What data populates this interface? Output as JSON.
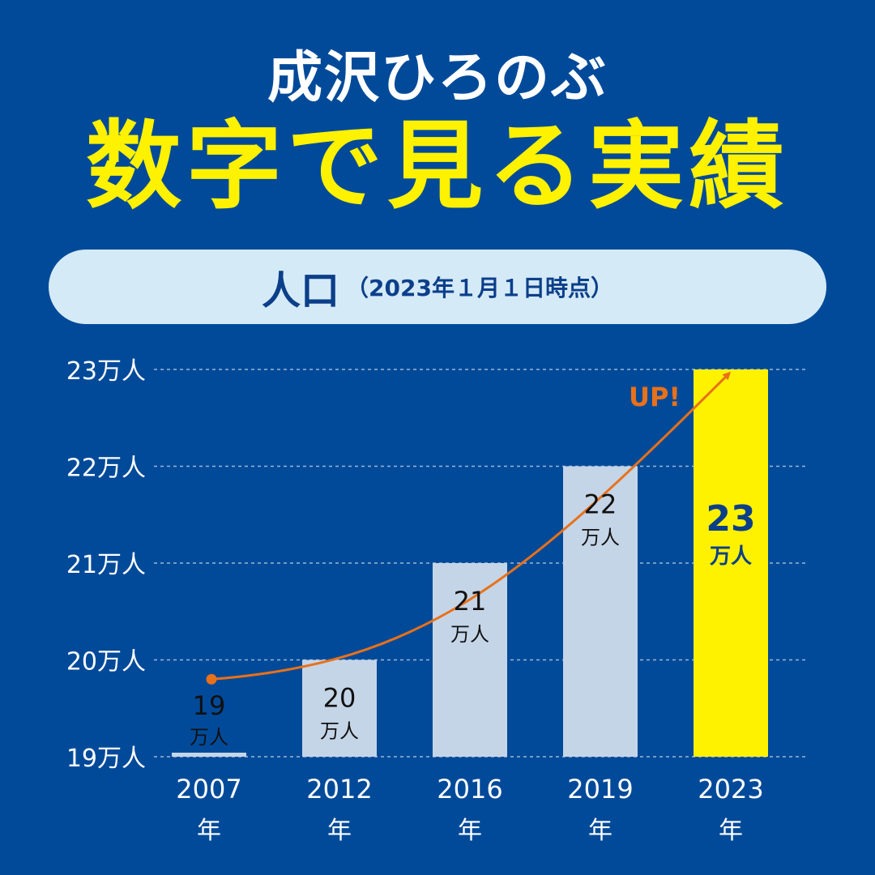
{
  "header": {
    "name": "成沢ひろのぶ",
    "headline": "数字で見る実績"
  },
  "panel": {
    "title": "人口",
    "subtitle": "（2023年１月１日時点）"
  },
  "colors": {
    "background": "#004a99",
    "headline": "#fff200",
    "bar": "#c5d5e8",
    "bar_highlight": "#fff200",
    "arrow": "#e8711a",
    "gridline": "#9fb6d6"
  },
  "chart_data": {
    "type": "bar",
    "categories": [
      "2007",
      "2012",
      "2016",
      "2019",
      "2023"
    ],
    "category_suffix": "年",
    "values": [
      19,
      20,
      21,
      22,
      23
    ],
    "value_labels": [
      {
        "number": "19",
        "unit": "万人"
      },
      {
        "number": "20",
        "unit": "万人"
      },
      {
        "number": "21",
        "unit": "万人"
      },
      {
        "number": "22",
        "unit": "万人"
      },
      {
        "number": "23",
        "unit": "万人"
      }
    ],
    "yticks": [
      {
        "value": 19,
        "label": "19万人"
      },
      {
        "value": 20,
        "label": "20万人"
      },
      {
        "value": 21,
        "label": "21万人"
      },
      {
        "value": 22,
        "label": "22万人"
      },
      {
        "value": 23,
        "label": "23万人"
      }
    ],
    "ylim": [
      19,
      23
    ],
    "highlight_index": 4,
    "annotation": "UP!",
    "grid": true
  }
}
